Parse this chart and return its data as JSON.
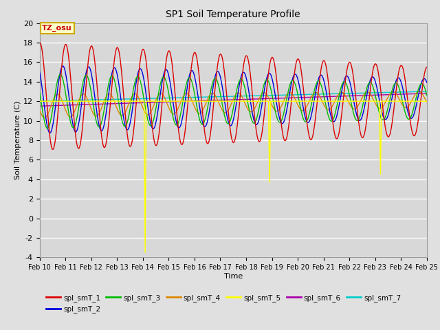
{
  "title": "SP1 Soil Temperature Profile",
  "xlabel": "Time",
  "ylabel": "Soil Temperature (C)",
  "annotation": "TZ_osu",
  "annotation_color": "#cc0000",
  "annotation_bg": "#ffffcc",
  "annotation_border": "#ccaa00",
  "ylim": [
    -4,
    20
  ],
  "yticks": [
    -4,
    -2,
    0,
    2,
    4,
    6,
    8,
    10,
    12,
    14,
    16,
    18,
    20
  ],
  "series_colors": {
    "spl_smT_1": "#dd0000",
    "spl_smT_2": "#0000dd",
    "spl_smT_3": "#00bb00",
    "spl_smT_4": "#dd8800",
    "spl_smT_5": "#ffff00",
    "spl_smT_6": "#aa00aa",
    "spl_smT_7": "#00cccc"
  },
  "background_color": "#e0e0e0",
  "plot_bg": "#d8d8d8",
  "grid_color": "#ffffff"
}
